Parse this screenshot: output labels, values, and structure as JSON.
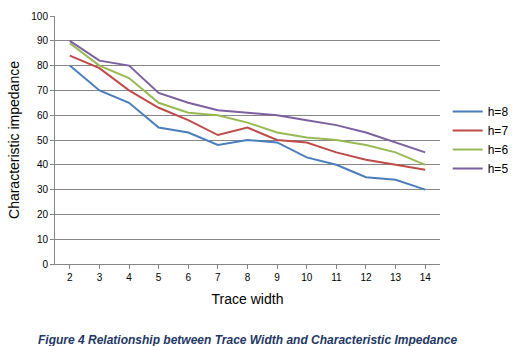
{
  "chart_data": {
    "type": "line",
    "title": "Figure 4 Relationship between Trace Width and Characteristic Impedance",
    "x_label": "Trace width",
    "y_label": "Characteristic impedance",
    "categories": [
      "2",
      "3",
      "4",
      "5",
      "6",
      "7",
      "8",
      "9",
      "10",
      "11",
      "12",
      "13",
      "14"
    ],
    "series": [
      {
        "name": "h=8",
        "color": "#4a7ebb",
        "values": [
          80,
          70,
          65,
          55,
          53,
          48,
          50,
          49,
          43,
          40,
          35,
          34,
          30
        ]
      },
      {
        "name": "h=7",
        "color": "#be4b48",
        "values": [
          84,
          79,
          70,
          63,
          58,
          52,
          55,
          50,
          49,
          45,
          42,
          40,
          38
        ]
      },
      {
        "name": "h=6",
        "color": "#98b954",
        "values": [
          89,
          80,
          75,
          65,
          61,
          60,
          57,
          53,
          51,
          50,
          48,
          45,
          40
        ]
      },
      {
        "name": "h=5",
        "color": "#7d60a0",
        "values": [
          90,
          82,
          80,
          69,
          65,
          62,
          61,
          60,
          58,
          56,
          53,
          49,
          45
        ]
      }
    ],
    "ylim": [
      0,
      100
    ],
    "yticks": [
      0,
      10,
      20,
      30,
      40,
      50,
      60,
      70,
      80,
      90,
      100
    ],
    "grid": true,
    "legend": "right"
  }
}
